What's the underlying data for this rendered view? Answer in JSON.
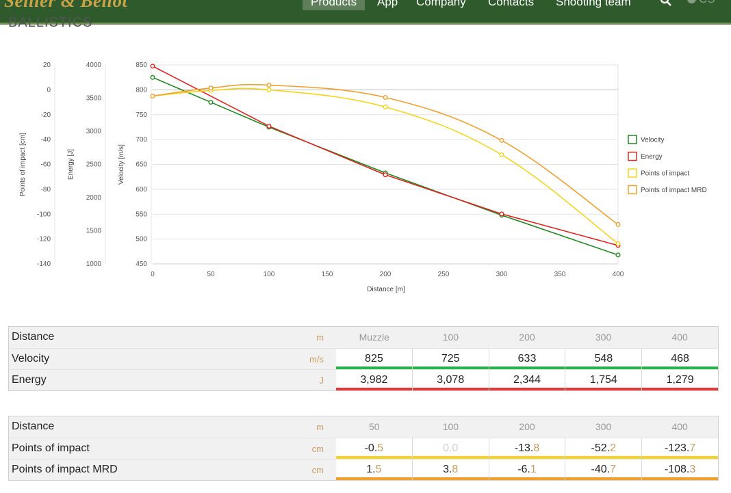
{
  "nav": {
    "logo": "Sellier & Bellot",
    "items": [
      "Products",
      "App",
      "Company",
      "Contacts",
      "Shooting team"
    ],
    "active": "Products",
    "lang": "CS"
  },
  "section_title": "BALLISTICS",
  "chart_data": {
    "type": "line",
    "xlabel": "Distance [m]",
    "x": [
      0,
      50,
      100,
      200,
      300,
      400
    ],
    "xlim": [
      0,
      400
    ],
    "xticks": [
      0,
      50,
      100,
      150,
      200,
      250,
      300,
      350,
      400
    ],
    "axes": [
      {
        "id": "poi",
        "label": "Points of impact [cm]",
        "ticks": [
          20,
          0,
          -20,
          -40,
          -60,
          -80,
          -100,
          -120,
          -140
        ],
        "range": [
          -140,
          20
        ]
      },
      {
        "id": "energy",
        "label": "Energy [J]",
        "ticks": [
          4000,
          3500,
          3000,
          2500,
          2000,
          1500,
          1000
        ],
        "range": [
          1000,
          4000
        ]
      },
      {
        "id": "velocity",
        "label": "Velocity [m/s]",
        "ticks": [
          850,
          800,
          750,
          700,
          650,
          600,
          550,
          500,
          450
        ],
        "range": [
          450,
          850
        ]
      }
    ],
    "series": [
      {
        "name": "Velocity",
        "axis": "velocity",
        "color": "#1e8a1e",
        "x": [
          0,
          50,
          100,
          200,
          300,
          400
        ],
        "values": [
          825,
          775,
          725,
          633,
          548,
          468
        ]
      },
      {
        "name": "Energy",
        "axis": "energy",
        "color": "#e3231e",
        "x": [
          0,
          100,
          200,
          300,
          400
        ],
        "values": [
          3982,
          3078,
          2344,
          1754,
          1279
        ]
      },
      {
        "name": "Points of impact",
        "axis": "poi",
        "color": "#f7d417",
        "x": [
          0,
          50,
          100,
          200,
          300,
          400
        ],
        "values": [
          -5,
          -0.5,
          0,
          -13.8,
          -52.2,
          -123.7
        ]
      },
      {
        "name": "Points of impact MRD",
        "axis": "poi",
        "color": "#f2a02b",
        "x": [
          0,
          50,
          100,
          200,
          300,
          400
        ],
        "values": [
          -5,
          1.5,
          3.8,
          -6.1,
          -40.7,
          -108.3
        ]
      }
    ],
    "legend_position": "right"
  },
  "table1": {
    "header": {
      "label": "Distance",
      "unit": "m",
      "values": [
        "Muzzle",
        "100",
        "200",
        "300",
        "400"
      ]
    },
    "rows": [
      {
        "label": "Velocity",
        "unit": "m/s",
        "values": [
          "825",
          "725",
          "633",
          "548",
          "468"
        ],
        "bar_color": "green"
      },
      {
        "label": "Energy",
        "unit": "J",
        "values": [
          "3,982",
          "3,078",
          "2,344",
          "1,754",
          "1,279"
        ],
        "bar_color": "red"
      }
    ]
  },
  "table2": {
    "header": {
      "label": "Distance",
      "unit": "m",
      "values": [
        "50",
        "100",
        "200",
        "300",
        "400"
      ]
    },
    "rows": [
      {
        "label": "Points of impact",
        "unit": "cm",
        "ints": [
          "-0",
          "",
          "-13",
          "-52",
          "-123"
        ],
        "decs": [
          "5",
          "0.0",
          "8",
          "2",
          "7"
        ],
        "bar_color": "yellow"
      },
      {
        "label": "Points of impact MRD",
        "unit": "cm",
        "ints": [
          "1",
          "3",
          "-6",
          "-40",
          "-108"
        ],
        "decs": [
          "5",
          "8",
          "1",
          "7",
          "3"
        ],
        "bar_color": "orange"
      }
    ]
  }
}
